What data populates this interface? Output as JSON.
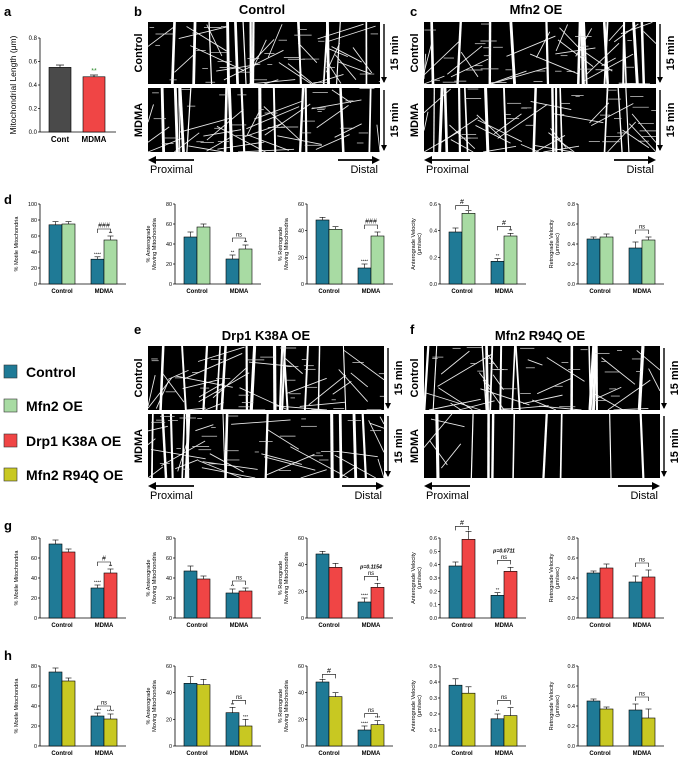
{
  "figure": {
    "panel_letters": [
      "a",
      "b",
      "c",
      "d",
      "e",
      "f",
      "g",
      "h"
    ],
    "panel_b_title": "Control",
    "panel_c_title": "Mfn2 OE",
    "panel_e_title": "Drp1 K38A OE",
    "panel_f_title": "Mfn2 R94Q OE",
    "kymo_row_top": "Control",
    "kymo_row_bottom": "MDMA",
    "time_label": "15 min",
    "proximal": "Proximal",
    "distal": "Distal"
  },
  "legend": [
    {
      "label": "Control",
      "color": "#1f7a96"
    },
    {
      "label": "Mfn2 OE",
      "color": "#a8dba3"
    },
    {
      "label": "Drp1 K38A OE",
      "color": "#f04545"
    },
    {
      "label": "Mfn2 R94Q OE",
      "color": "#c8c822"
    }
  ],
  "colors": {
    "control": "#1f7a96",
    "mfn2": "#a8dba3",
    "drp1": "#f04545",
    "r94q": "#c8c822",
    "panel_a_cont": "#4a4a4a",
    "panel_a_mdma": "#f04545"
  },
  "chart_data": [
    {
      "id": "a",
      "type": "bar",
      "categories": [
        "Cont",
        "MDMA"
      ],
      "values": [
        0.55,
        0.47
      ],
      "errors": [
        0.02,
        0.015
      ],
      "colors": [
        "#4a4a4a",
        "#f04545"
      ],
      "ylabel": "Mitochondrial Length (μm)",
      "ylim": [
        0,
        0.8
      ],
      "yticks": [
        "0.0",
        "0.2",
        "0.4",
        "0.6",
        "0.8"
      ],
      "annotations": [
        {
          "index": 1,
          "text": "**"
        }
      ]
    },
    {
      "id": "d1",
      "type": "bar",
      "categories": [
        "Control",
        "MDMA"
      ],
      "ylabel": "% Motile Mitochondria",
      "ylim": [
        0,
        100
      ],
      "yticks": [
        "0",
        "20",
        "40",
        "60",
        "80",
        "100"
      ],
      "series": [
        {
          "values": [
            74,
            31
          ],
          "errors": [
            4,
            3
          ]
        },
        {
          "values": [
            75,
            55
          ],
          "errors": [
            3,
            5
          ]
        }
      ],
      "stars": [
        [
          "",
          ""
        ],
        [
          "****",
          "**"
        ]
      ],
      "bracket": "###"
    },
    {
      "id": "d2",
      "type": "bar",
      "categories": [
        "Control",
        "MDMA"
      ],
      "ylabel": "% Anterograde Moving Mitochondria",
      "ylim": [
        0,
        80
      ],
      "yticks": [
        "0",
        "20",
        "40",
        "60",
        "80"
      ],
      "series": [
        {
          "values": [
            47,
            25
          ],
          "errors": [
            5,
            4
          ]
        },
        {
          "values": [
            57,
            35
          ],
          "errors": [
            3,
            4
          ]
        }
      ],
      "stars": [
        [
          "",
          ""
        ],
        [
          "**",
          "**"
        ]
      ],
      "bracket": "ns"
    },
    {
      "id": "d3",
      "type": "bar",
      "categories": [
        "Control",
        "MDMA"
      ],
      "ylabel": "% Retrograde Moving Mitochondria",
      "ylim": [
        0,
        60
      ],
      "yticks": [
        "0",
        "20",
        "40",
        "60"
      ],
      "series": [
        {
          "values": [
            48,
            12
          ],
          "errors": [
            2,
            3
          ]
        },
        {
          "values": [
            41,
            36
          ],
          "errors": [
            2,
            3
          ]
        }
      ],
      "stars": [
        [
          "",
          ""
        ],
        [
          "****",
          ""
        ]
      ],
      "bracket": "###"
    },
    {
      "id": "d4",
      "type": "bar",
      "categories": [
        "Control",
        "MDMA"
      ],
      "ylabel": "Anterograde Velocity (μm/sec)",
      "ylim": [
        0,
        0.6
      ],
      "yticks": [
        "0.0",
        "0.2",
        "0.4",
        "0.6"
      ],
      "series": [
        {
          "values": [
            0.39,
            0.17
          ],
          "errors": [
            0.03,
            0.02
          ]
        },
        {
          "values": [
            0.53,
            0.36
          ],
          "errors": [
            0.02,
            0.02
          ]
        }
      ],
      "stars": [
        [
          "",
          ""
        ],
        [
          "**",
          "**"
        ]
      ],
      "bracket": "#",
      "bracket_control": "#"
    },
    {
      "id": "d5",
      "type": "bar",
      "categories": [
        "Control",
        "MDMA"
      ],
      "ylabel": "Retrograde Velocity (μm/sec)",
      "ylim": [
        0,
        0.8
      ],
      "yticks": [
        "0.0",
        "0.2",
        "0.4",
        "0.6",
        "0.8"
      ],
      "series": [
        {
          "values": [
            0.45,
            0.36
          ],
          "errors": [
            0.02,
            0.06
          ]
        },
        {
          "values": [
            0.47,
            0.44
          ],
          "errors": [
            0.03,
            0.03
          ]
        }
      ],
      "stars": [
        [
          "",
          ""
        ],
        [
          "",
          ""
        ]
      ],
      "bracket": "ns"
    },
    {
      "id": "g1",
      "type": "bar",
      "categories": [
        "Control",
        "MDMA"
      ],
      "ylabel": "% Motile Mitochondria",
      "ylim": [
        0,
        80
      ],
      "yticks": [
        "0",
        "20",
        "40",
        "60",
        "80"
      ],
      "series": [
        {
          "values": [
            74,
            30
          ],
          "errors": [
            4,
            3
          ]
        },
        {
          "values": [
            66,
            45
          ],
          "errors": [
            3,
            4
          ]
        }
      ],
      "stars": [
        [
          "",
          ""
        ],
        [
          "****",
          "**"
        ]
      ],
      "bracket": "#"
    },
    {
      "id": "g2",
      "type": "bar",
      "categories": [
        "Control",
        "MDMA"
      ],
      "ylabel": "% Anterograde Moving Mitochondria",
      "ylim": [
        0,
        80
      ],
      "yticks": [
        "0",
        "20",
        "40",
        "60",
        "80"
      ],
      "series": [
        {
          "values": [
            47,
            25
          ],
          "errors": [
            5,
            4
          ]
        },
        {
          "values": [
            39,
            27
          ],
          "errors": [
            3,
            3
          ]
        }
      ],
      "stars": [
        [
          "",
          ""
        ],
        [
          "**",
          ""
        ]
      ],
      "bracket": "ns"
    },
    {
      "id": "g3",
      "type": "bar",
      "categories": [
        "Control",
        "MDMA"
      ],
      "ylabel": "% Retrograde Moving Mitochondria",
      "ylim": [
        0,
        60
      ],
      "yticks": [
        "0",
        "20",
        "40",
        "60"
      ],
      "series": [
        {
          "values": [
            48,
            12
          ],
          "errors": [
            2,
            3
          ]
        },
        {
          "values": [
            38,
            23
          ],
          "errors": [
            3,
            3
          ]
        }
      ],
      "stars": [
        [
          "",
          ""
        ],
        [
          "****",
          "*"
        ]
      ],
      "bracket": "ns",
      "bracket_note": "p=0.1154"
    },
    {
      "id": "g4",
      "type": "bar",
      "categories": [
        "Control",
        "MDMA"
      ],
      "ylabel": "Anterograde Velocity (μm/sec)",
      "ylim": [
        0,
        0.6
      ],
      "yticks": [
        "0.0",
        "0.1",
        "0.2",
        "0.3",
        "0.4",
        "0.5",
        "0.6"
      ],
      "series": [
        {
          "values": [
            0.39,
            0.17
          ],
          "errors": [
            0.03,
            0.02
          ]
        },
        {
          "values": [
            0.59,
            0.35
          ],
          "errors": [
            0.06,
            0.03
          ]
        }
      ],
      "stars": [
        [
          "",
          ""
        ],
        [
          "**",
          ""
        ]
      ],
      "bracket": "ns",
      "bracket_note": "p=0.0711",
      "bracket_control": "#"
    },
    {
      "id": "g5",
      "type": "bar",
      "categories": [
        "Control",
        "MDMA"
      ],
      "ylabel": "Retrograde Velocity (μm/sec)",
      "ylim": [
        0,
        0.8
      ],
      "yticks": [
        "0.0",
        "0.2",
        "0.4",
        "0.6",
        "0.8"
      ],
      "series": [
        {
          "values": [
            0.45,
            0.36
          ],
          "errors": [
            0.02,
            0.06
          ]
        },
        {
          "values": [
            0.5,
            0.41
          ],
          "errors": [
            0.04,
            0.07
          ]
        }
      ],
      "stars": [
        [
          "",
          ""
        ],
        [
          "",
          ""
        ]
      ],
      "bracket": "ns"
    },
    {
      "id": "h1",
      "type": "bar",
      "categories": [
        "Control",
        "MDMA"
      ],
      "ylabel": "% Motile Mitochondria",
      "ylim": [
        0,
        80
      ],
      "yticks": [
        "0",
        "20",
        "40",
        "60",
        "80"
      ],
      "series": [
        {
          "values": [
            74,
            30
          ],
          "errors": [
            4,
            3
          ]
        },
        {
          "values": [
            65,
            27
          ],
          "errors": [
            3,
            5
          ]
        }
      ],
      "stars": [
        [
          "",
          ""
        ],
        [
          "****",
          "****"
        ]
      ],
      "bracket": "ns"
    },
    {
      "id": "h2",
      "type": "bar",
      "categories": [
        "Control",
        "MDMA"
      ],
      "ylabel": "% Anterograde Moving Mitochondria",
      "ylim": [
        0,
        60
      ],
      "yticks": [
        "0",
        "20",
        "40",
        "60"
      ],
      "series": [
        {
          "values": [
            47,
            25
          ],
          "errors": [
            5,
            4
          ]
        },
        {
          "values": [
            46,
            15
          ],
          "errors": [
            4,
            5
          ]
        }
      ],
      "stars": [
        [
          "",
          ""
        ],
        [
          "**",
          "***"
        ]
      ],
      "bracket": "ns"
    },
    {
      "id": "h3",
      "type": "bar",
      "categories": [
        "Control",
        "MDMA"
      ],
      "ylabel": "% Retrograde Moving Mitochondria",
      "ylim": [
        0,
        60
      ],
      "yticks": [
        "0",
        "20",
        "40",
        "60"
      ],
      "series": [
        {
          "values": [
            48,
            12
          ],
          "errors": [
            2,
            3
          ]
        },
        {
          "values": [
            37,
            16
          ],
          "errors": [
            3,
            3
          ]
        }
      ],
      "stars": [
        [
          "",
          ""
        ],
        [
          "****",
          "***"
        ]
      ],
      "bracket": "ns",
      "bracket_control": "#"
    },
    {
      "id": "h4",
      "type": "bar",
      "categories": [
        "Control",
        "MDMA"
      ],
      "ylabel": "Anterograde Velocity (μm/sec)",
      "ylim": [
        0,
        0.5
      ],
      "yticks": [
        "0.0",
        "0.1",
        "0.2",
        "0.3",
        "0.4",
        "0.5"
      ],
      "series": [
        {
          "values": [
            0.38,
            0.17
          ],
          "errors": [
            0.04,
            0.03
          ]
        },
        {
          "values": [
            0.33,
            0.19
          ],
          "errors": [
            0.04,
            0.05
          ]
        }
      ],
      "stars": [
        [
          "",
          ""
        ],
        [
          "**",
          ""
        ]
      ],
      "bracket": "ns"
    },
    {
      "id": "h5",
      "type": "bar",
      "categories": [
        "Control",
        "MDMA"
      ],
      "ylabel": "Retrograde Velocity (μm/sec)",
      "ylim": [
        0,
        0.8
      ],
      "yticks": [
        "0.0",
        "0.2",
        "0.4",
        "0.6",
        "0.8"
      ],
      "series": [
        {
          "values": [
            0.45,
            0.36
          ],
          "errors": [
            0.02,
            0.06
          ]
        },
        {
          "values": [
            0.37,
            0.28
          ],
          "errors": [
            0.02,
            0.09
          ]
        }
      ],
      "stars": [
        [
          "",
          ""
        ],
        [
          "",
          ""
        ]
      ],
      "bracket": "ns"
    }
  ]
}
